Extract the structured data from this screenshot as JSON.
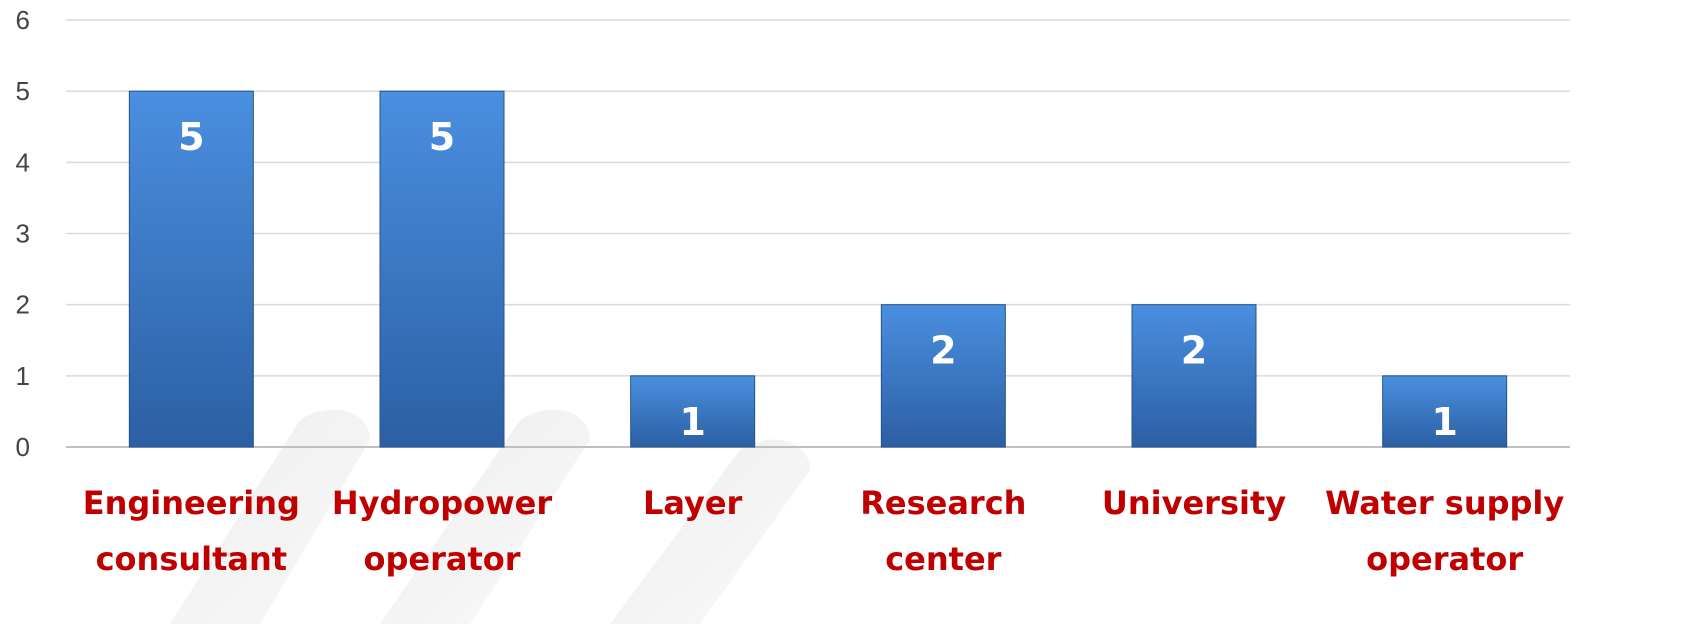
{
  "chart_data": {
    "type": "bar",
    "title": "",
    "xlabel": "",
    "ylabel": "",
    "categories": [
      [
        "Engineering",
        "consultant"
      ],
      [
        "Hydropower",
        "operator"
      ],
      [
        "Layer"
      ],
      [
        "Research",
        "center"
      ],
      [
        "University"
      ],
      [
        "Water supply",
        "operator"
      ]
    ],
    "values": [
      5,
      5,
      1,
      2,
      2,
      1
    ],
    "data_labels": [
      "5",
      "5",
      "1",
      "2",
      "2",
      "1"
    ],
    "ylim": [
      0,
      6
    ],
    "yticks": [
      "0",
      "1",
      "2",
      "3",
      "4",
      "5",
      "6"
    ],
    "grid": true,
    "legend": "none",
    "colors": {
      "bar_top": "#4a8fe0",
      "bar_bottom": "#2c5fa3",
      "bar_edge": "#23538f",
      "category_text": "#c00000",
      "data_label_text": "#ffffff",
      "grid": "#d9d9d9",
      "axis": "#bfbfbf",
      "tick_text": "#444444"
    }
  }
}
